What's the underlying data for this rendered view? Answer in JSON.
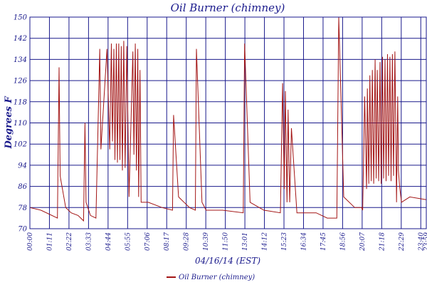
{
  "chart_data": {
    "type": "line",
    "title": "Oil Burner (chimney)",
    "xlabel": "04/16/14 (EST)",
    "ylabel": "Degrees F",
    "ylim": [
      70,
      150
    ],
    "yticks": [
      70,
      78,
      86,
      94,
      102,
      110,
      118,
      126,
      134,
      142,
      150
    ],
    "xlim": [
      0,
      1440
    ],
    "xticks": [
      {
        "t": 0,
        "label": "00:00"
      },
      {
        "t": 71,
        "label": "01:11"
      },
      {
        "t": 142,
        "label": "02:22"
      },
      {
        "t": 213,
        "label": "03:33"
      },
      {
        "t": 284,
        "label": "04:44"
      },
      {
        "t": 355,
        "label": "05:55"
      },
      {
        "t": 426,
        "label": "07:06"
      },
      {
        "t": 497,
        "label": "08:17"
      },
      {
        "t": 568,
        "label": "09:28"
      },
      {
        "t": 639,
        "label": "10:39"
      },
      {
        "t": 710,
        "label": "11:50"
      },
      {
        "t": 781,
        "label": "13:01"
      },
      {
        "t": 852,
        "label": "14:12"
      },
      {
        "t": 923,
        "label": "15:23"
      },
      {
        "t": 994,
        "label": "16:34"
      },
      {
        "t": 1065,
        "label": "17:45"
      },
      {
        "t": 1136,
        "label": "18:56"
      },
      {
        "t": 1207,
        "label": "20:07"
      },
      {
        "t": 1278,
        "label": "21:18"
      },
      {
        "t": 1349,
        "label": "22:29"
      },
      {
        "t": 1420,
        "label": "23:40"
      },
      {
        "t": 1440,
        "label": "23:59"
      }
    ],
    "grid": true,
    "legend": "bottom-center",
    "series": [
      {
        "name": "Oil Burner (chimney)",
        "color": "#a31515",
        "x": [
          0,
          40,
          100,
          106,
          110,
          130,
          150,
          175,
          195,
          200,
          204,
          220,
          240,
          254,
          258,
          280,
          290,
          296,
          300,
          305,
          309,
          314,
          318,
          323,
          327,
          332,
          336,
          341,
          346,
          352,
          360,
          374,
          378,
          383,
          387,
          392,
          395,
          400,
          404,
          430,
          480,
          518,
          522,
          540,
          580,
          601,
          605,
          625,
          640,
          700,
          775,
          780,
          800,
          850,
          910,
          910,
          918,
          924,
          928,
          934,
          938,
          944,
          950,
          970,
          1040,
          1080,
          1115,
          1122,
          1140,
          1180,
          1205,
          1209,
          1216,
          1223,
          1226,
          1231,
          1235,
          1240,
          1244,
          1249,
          1254,
          1258,
          1262,
          1267,
          1272,
          1276,
          1281,
          1285,
          1290,
          1294,
          1299,
          1303,
          1308,
          1312,
          1317,
          1321,
          1326,
          1332,
          1336,
          1339,
          1343,
          1350,
          1380,
          1440
        ],
        "y": [
          78,
          77,
          74,
          131,
          90,
          78,
          76,
          75,
          73,
          110,
          80,
          75,
          74,
          138,
          100,
          138,
          100,
          140,
          103,
          138,
          96,
          140,
          95,
          140,
          96,
          139,
          92,
          141,
          93,
          139,
          82,
          137,
          98,
          140,
          92,
          138,
          82,
          130,
          80,
          80,
          78,
          77,
          113,
          82,
          78,
          77,
          138,
          80,
          77,
          77,
          76,
          140,
          80,
          77,
          76,
          76,
          125,
          85,
          122,
          80,
          115,
          80,
          108,
          76,
          76,
          74,
          74,
          150,
          82,
          78,
          78,
          77,
          120,
          85,
          123,
          87,
          128,
          88,
          130,
          87,
          134,
          89,
          130,
          88,
          133,
          87,
          135,
          89,
          134,
          88,
          136,
          90,
          135,
          88,
          136,
          90,
          137,
          80,
          120,
          92,
          86,
          80,
          82,
          81
        ]
      }
    ]
  }
}
